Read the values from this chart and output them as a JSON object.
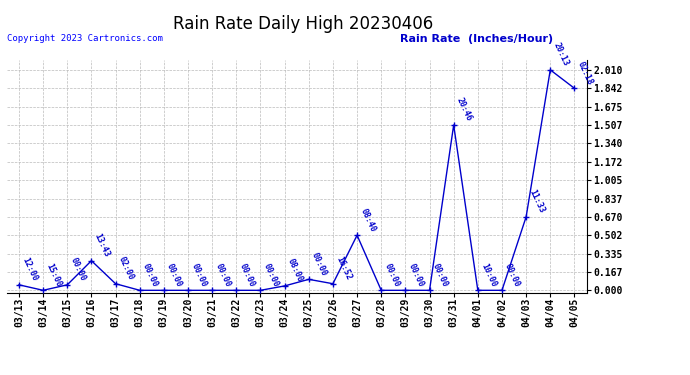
{
  "title": "Rain Rate Daily High 20230406",
  "copyright": "Copyright 2023 Cartronics.com",
  "ylabel": "Rain Rate  (Inches/Hour)",
  "line_color": "#0000CC",
  "background_color": "#ffffff",
  "grid_color": "#bbbbbb",
  "yticks": [
    0.0,
    0.167,
    0.335,
    0.502,
    0.67,
    0.837,
    1.005,
    1.172,
    1.34,
    1.507,
    1.675,
    1.842,
    2.01
  ],
  "dates": [
    "03/13",
    "03/14",
    "03/15",
    "03/16",
    "03/17",
    "03/18",
    "03/19",
    "03/20",
    "03/21",
    "03/22",
    "03/23",
    "03/24",
    "03/25",
    "03/26",
    "03/27",
    "03/28",
    "03/29",
    "03/30",
    "03/31",
    "04/01",
    "04/02",
    "04/03",
    "04/04",
    "04/05"
  ],
  "values": [
    0.05,
    0.0,
    0.05,
    0.27,
    0.06,
    0.0,
    0.0,
    0.0,
    0.0,
    0.0,
    0.0,
    0.04,
    0.1,
    0.06,
    0.502,
    0.0,
    0.0,
    0.0,
    1.507,
    0.0,
    0.0,
    0.67,
    2.01,
    1.842
  ],
  "time_labels": [
    "12:00",
    "15:00",
    "00:00",
    "13:43",
    "02:00",
    "00:00",
    "00:00",
    "00:00",
    "00:00",
    "00:00",
    "00:00",
    "08:00",
    "00:00",
    "16:52",
    "08:40",
    "00:00",
    "00:00",
    "00:00",
    "20:46",
    "10:00",
    "00:00",
    "11:33",
    "20:13",
    "02:18"
  ],
  "title_fontsize": 12,
  "copyright_fontsize": 6.5,
  "ylabel_fontsize": 8,
  "tick_fontsize": 7,
  "annotation_fontsize": 6
}
